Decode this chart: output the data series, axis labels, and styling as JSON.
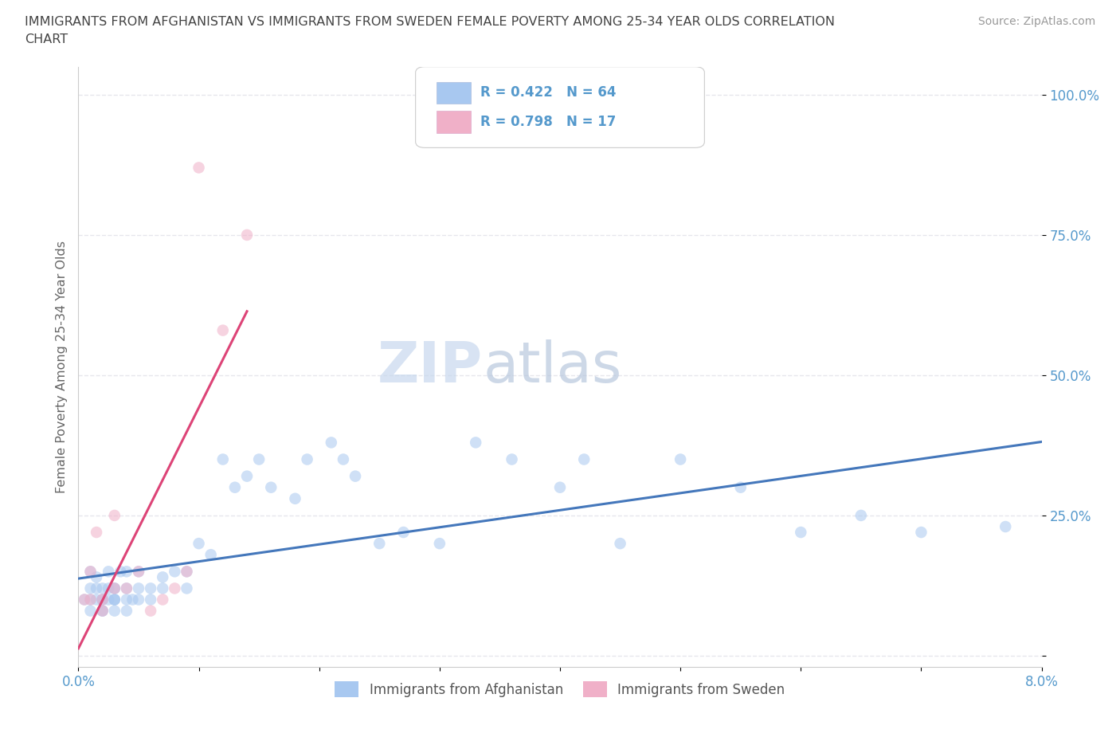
{
  "title_line1": "IMMIGRANTS FROM AFGHANISTAN VS IMMIGRANTS FROM SWEDEN FEMALE POVERTY AMONG 25-34 YEAR OLDS CORRELATION",
  "title_line2": "CHART",
  "source": "Source: ZipAtlas.com",
  "ylabel": "Female Poverty Among 25-34 Year Olds",
  "xlim": [
    0.0,
    0.08
  ],
  "ylim": [
    -0.02,
    1.05
  ],
  "ytick_vals": [
    0.0,
    0.25,
    0.5,
    0.75,
    1.0
  ],
  "ytick_labels": [
    "",
    "25.0%",
    "50.0%",
    "75.0%",
    "100.0%"
  ],
  "xtick_positions": [
    0.0,
    0.01,
    0.02,
    0.03,
    0.04,
    0.05,
    0.06,
    0.07,
    0.08
  ],
  "xtick_labels": [
    "0.0%",
    "",
    "",
    "",
    "",
    "",
    "",
    "",
    "8.0%"
  ],
  "color_afghanistan": "#a8c8f0",
  "color_sweden": "#f0b0c8",
  "trendline_afghanistan": "#4477bb",
  "trendline_sweden": "#dd4477",
  "R_afghanistan": 0.422,
  "N_afghanistan": 64,
  "R_sweden": 0.798,
  "N_sweden": 17,
  "watermark_zip": "ZIP",
  "watermark_atlas": "atlas",
  "background_color": "#ffffff",
  "grid_color": "#e0e0e8",
  "tick_color": "#5599cc",
  "legend_text_color": "#333333",
  "legend_stat_color": "#5599cc",
  "af_x": [
    0.0005,
    0.001,
    0.001,
    0.001,
    0.001,
    0.0015,
    0.0015,
    0.0015,
    0.002,
    0.002,
    0.002,
    0.002,
    0.002,
    0.0025,
    0.0025,
    0.0025,
    0.003,
    0.003,
    0.003,
    0.003,
    0.003,
    0.003,
    0.0035,
    0.004,
    0.004,
    0.004,
    0.004,
    0.0045,
    0.005,
    0.005,
    0.005,
    0.006,
    0.006,
    0.007,
    0.007,
    0.008,
    0.009,
    0.009,
    0.01,
    0.011,
    0.012,
    0.013,
    0.014,
    0.015,
    0.016,
    0.018,
    0.019,
    0.021,
    0.022,
    0.023,
    0.025,
    0.027,
    0.03,
    0.033,
    0.036,
    0.04,
    0.042,
    0.045,
    0.05,
    0.055,
    0.06,
    0.065,
    0.07,
    0.077
  ],
  "af_y": [
    0.1,
    0.12,
    0.1,
    0.15,
    0.08,
    0.1,
    0.12,
    0.14,
    0.08,
    0.1,
    0.12,
    0.1,
    0.08,
    0.12,
    0.1,
    0.15,
    0.1,
    0.08,
    0.12,
    0.1,
    0.1,
    0.12,
    0.15,
    0.1,
    0.12,
    0.08,
    0.15,
    0.1,
    0.12,
    0.15,
    0.1,
    0.12,
    0.1,
    0.14,
    0.12,
    0.15,
    0.15,
    0.12,
    0.2,
    0.18,
    0.35,
    0.3,
    0.32,
    0.35,
    0.3,
    0.28,
    0.35,
    0.38,
    0.35,
    0.32,
    0.2,
    0.22,
    0.2,
    0.38,
    0.35,
    0.3,
    0.35,
    0.2,
    0.35,
    0.3,
    0.22,
    0.25,
    0.22,
    0.23
  ],
  "sw_x": [
    0.0005,
    0.001,
    0.001,
    0.0015,
    0.002,
    0.002,
    0.003,
    0.003,
    0.004,
    0.005,
    0.006,
    0.007,
    0.008,
    0.009,
    0.01,
    0.012,
    0.014
  ],
  "sw_y": [
    0.1,
    0.1,
    0.15,
    0.22,
    0.08,
    0.1,
    0.12,
    0.25,
    0.12,
    0.15,
    0.08,
    0.1,
    0.12,
    0.15,
    0.87,
    0.58,
    0.75
  ]
}
